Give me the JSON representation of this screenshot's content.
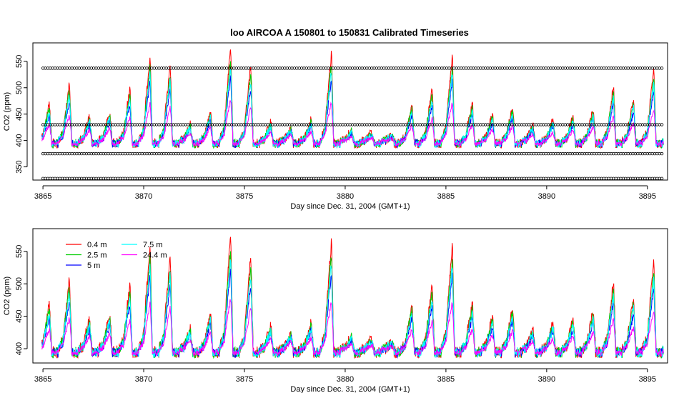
{
  "title": "loo   AIRCOA  A    150801  to  150831   Calibrated Timeseries",
  "chart_data": [
    {
      "type": "line",
      "panel": "top",
      "xlabel": "Day since Dec. 31, 2004 (GMT+1)",
      "ylabel": "CO2 (ppm)",
      "xlim": [
        3864.5,
        3896
      ],
      "ylim": [
        325,
        585
      ],
      "xticks": [
        3865,
        3870,
        3875,
        3880,
        3885,
        3890,
        3895
      ],
      "yticks": [
        350,
        400,
        450,
        500,
        550
      ],
      "grid": false,
      "reference_points": [
        {
          "y": 537,
          "dx": 0.12,
          "marker": "open-circle"
        },
        {
          "y": 430,
          "dx": 0.12,
          "marker": "open-circle"
        },
        {
          "y": 375,
          "dx": 0.12,
          "marker": "open-circle"
        },
        {
          "y": 328,
          "dx": 0.12,
          "marker": "open-circle"
        }
      ]
    },
    {
      "type": "line",
      "panel": "bottom",
      "xlabel": "Day since Dec. 31, 2004 (GMT+1)",
      "ylabel": "CO2 (ppm)",
      "xlim": [
        3864.5,
        3896
      ],
      "ylim": [
        378,
        585
      ],
      "xticks": [
        3865,
        3870,
        3875,
        3880,
        3885,
        3890,
        3895
      ],
      "yticks": [
        400,
        450,
        500,
        550
      ],
      "grid": false,
      "legend": {
        "position": "top-left",
        "entries": [
          {
            "name": "0.4 m",
            "color": "#ff0000"
          },
          {
            "name": "2.5 m",
            "color": "#00cd00"
          },
          {
            "name": "5 m",
            "color": "#0000ff"
          },
          {
            "name": "7.5 m",
            "color": "#00ffff"
          },
          {
            "name": "24.4 m",
            "color": "#ff00ff"
          }
        ]
      }
    }
  ],
  "series_shape": {
    "baseline": 398,
    "days": [
      {
        "day": 3865,
        "peak": 470
      },
      {
        "day": 3866,
        "peak": 510
      },
      {
        "day": 3867,
        "peak": 445
      },
      {
        "day": 3868,
        "peak": 455
      },
      {
        "day": 3869,
        "peak": 500
      },
      {
        "day": 3870,
        "peak": 560
      },
      {
        "day": 3871,
        "peak": 545
      },
      {
        "day": 3872,
        "peak": 430
      },
      {
        "day": 3873,
        "peak": 455
      },
      {
        "day": 3874,
        "peak": 578
      },
      {
        "day": 3875,
        "peak": 545
      },
      {
        "day": 3876,
        "peak": 435
      },
      {
        "day": 3877,
        "peak": 425
      },
      {
        "day": 3878,
        "peak": 440
      },
      {
        "day": 3879,
        "peak": 568
      },
      {
        "day": 3880,
        "peak": 420
      },
      {
        "day": 3881,
        "peak": 415
      },
      {
        "day": 3882,
        "peak": 410
      },
      {
        "day": 3883,
        "peak": 470
      },
      {
        "day": 3884,
        "peak": 500
      },
      {
        "day": 3885,
        "peak": 565
      },
      {
        "day": 3886,
        "peak": 470
      },
      {
        "day": 3887,
        "peak": 450
      },
      {
        "day": 3888,
        "peak": 465
      },
      {
        "day": 3889,
        "peak": 430
      },
      {
        "day": 3890,
        "peak": 440
      },
      {
        "day": 3891,
        "peak": 445
      },
      {
        "day": 3892,
        "peak": 460
      },
      {
        "day": 3893,
        "peak": 505
      },
      {
        "day": 3894,
        "peak": 480
      },
      {
        "day": 3895,
        "peak": 535
      }
    ],
    "level_factors": [
      {
        "name": "0.4 m",
        "factor": 1.0
      },
      {
        "name": "2.5 m",
        "factor": 0.88
      },
      {
        "name": "5 m",
        "factor": 0.7
      },
      {
        "name": "7.5 m",
        "factor": 0.8
      },
      {
        "name": "24.4 m",
        "factor": 0.45
      }
    ]
  }
}
